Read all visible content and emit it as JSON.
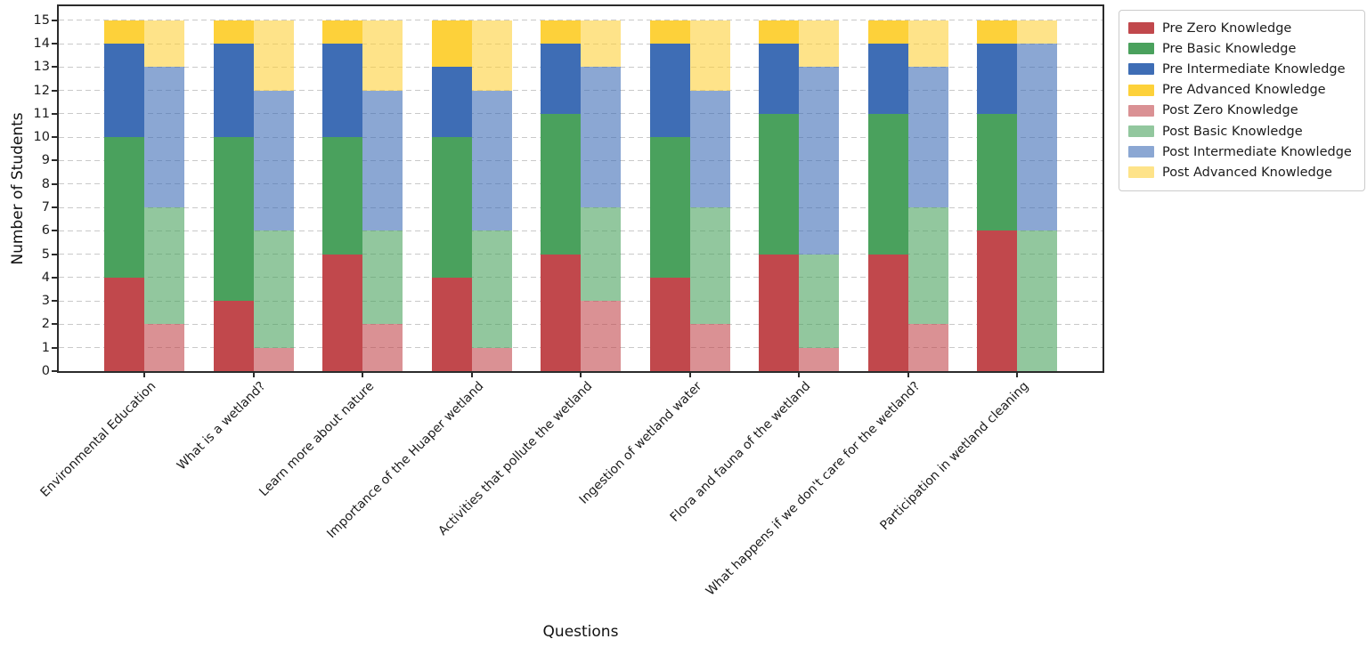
{
  "axes": {
    "ylabel": "Number of Students",
    "xlabel": "Questions",
    "y_ticks": [
      0,
      1,
      2,
      3,
      4,
      5,
      6,
      7,
      8,
      9,
      10,
      11,
      12,
      13,
      14,
      15
    ],
    "ylim": [
      0,
      15.6
    ],
    "grid": "horizontal dashed"
  },
  "colors": {
    "background": "#ffffff",
    "spine": "#2b2b2b",
    "grid": "#c9c9c9",
    "text": "#1c1c1c",
    "legend_border": "#cbcbcb"
  },
  "chart_data": {
    "type": "bar",
    "stacked": true,
    "grouping": "two stacked bars per category: Pre (solid, left) and Post (translucent, right)",
    "title": "",
    "xlabel": "Questions",
    "ylabel": "Number of Students",
    "ylim": [
      0,
      15
    ],
    "bar_total_per_stack": 15,
    "legend_position": "outside upper right",
    "categories": [
      "Environmental Education",
      "What is a wetland?",
      "Learn more about nature",
      "Importance of the Huaper wetland",
      "Activities that pollute the wetland",
      "Ingestion of wetland water",
      "Flora and fauna of the wetland",
      "What happens if we don't care for the wetland?",
      "Participation in wetland cleaning"
    ],
    "series": [
      {
        "name": "Pre Zero Knowledge",
        "stack": "pre",
        "color": "#c1484c",
        "values": [
          4,
          3,
          5,
          4,
          5,
          4,
          5,
          5,
          6
        ]
      },
      {
        "name": "Pre Basic Knowledge",
        "stack": "pre",
        "color": "#4aa15d",
        "values": [
          6,
          7,
          5,
          6,
          6,
          6,
          6,
          6,
          5
        ]
      },
      {
        "name": "Pre Intermediate Knowledge",
        "stack": "pre",
        "color": "#3e6db5",
        "values": [
          4,
          4,
          4,
          3,
          3,
          4,
          3,
          3,
          3
        ]
      },
      {
        "name": "Pre Advanced Knowledge",
        "stack": "pre",
        "color": "#fdd13a",
        "values": [
          1,
          1,
          1,
          2,
          1,
          1,
          1,
          1,
          1
        ]
      },
      {
        "name": "Post Zero Knowledge",
        "stack": "post",
        "color": "#da9194",
        "base_color": "#c1484c",
        "alpha": 0.6,
        "values": [
          2,
          1,
          2,
          1,
          3,
          2,
          1,
          2,
          0
        ]
      },
      {
        "name": "Post Basic Knowledge",
        "stack": "post",
        "color": "#92c79e",
        "base_color": "#4aa15d",
        "alpha": 0.6,
        "values": [
          5,
          5,
          4,
          5,
          4,
          5,
          4,
          5,
          6
        ]
      },
      {
        "name": "Post Intermediate Knowledge",
        "stack": "post",
        "color": "#8ba7d3",
        "base_color": "#3e6db5",
        "alpha": 0.6,
        "values": [
          6,
          6,
          6,
          6,
          6,
          5,
          8,
          6,
          8
        ]
      },
      {
        "name": "Post Advanced Knowledge",
        "stack": "post",
        "color": "#fee389",
        "base_color": "#fdd13a",
        "alpha": 0.6,
        "values": [
          2,
          3,
          3,
          3,
          2,
          3,
          2,
          2,
          1
        ]
      }
    ]
  }
}
